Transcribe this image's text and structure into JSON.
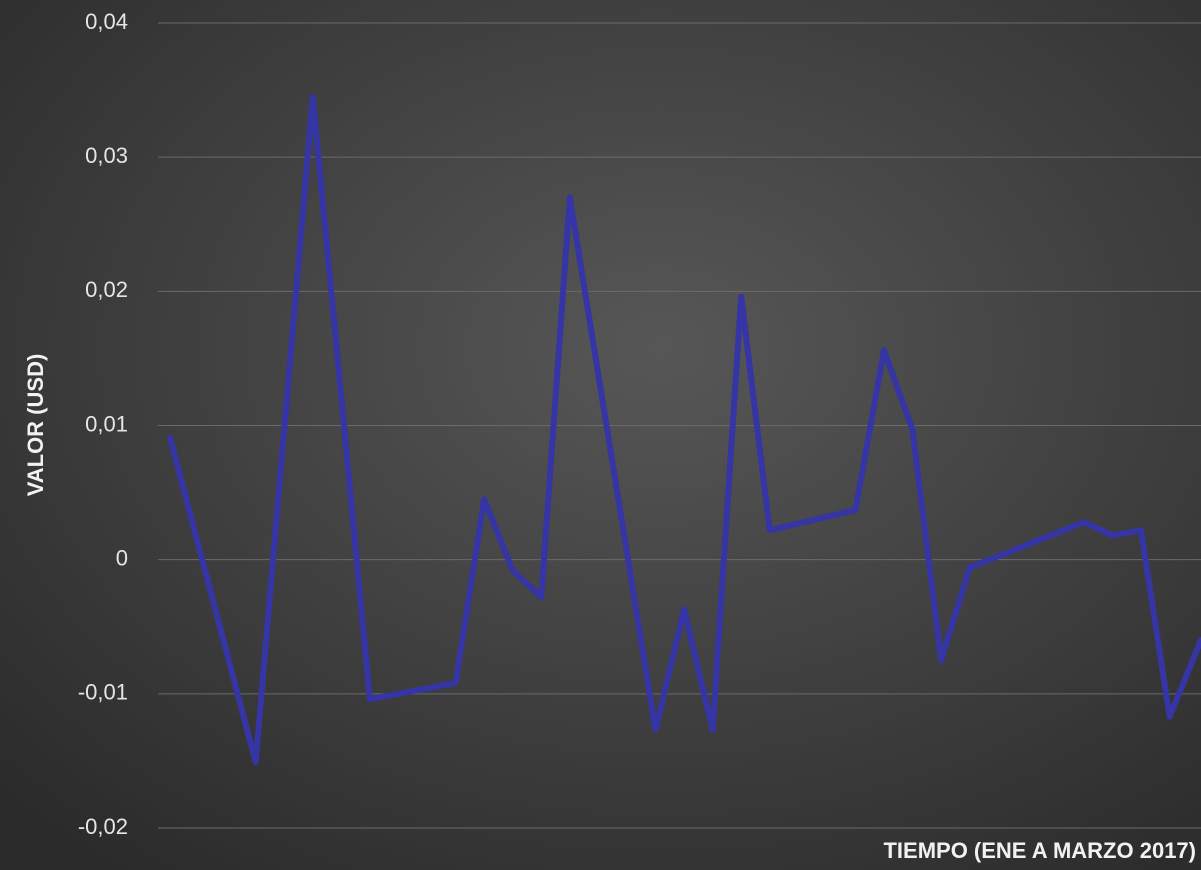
{
  "chart_data": {
    "type": "line",
    "y_label": "VALOR (USD)",
    "x_label": "TIEMPO (ENE A MARZO 2017)",
    "x": [
      0,
      3,
      5,
      7,
      10,
      11,
      12,
      13,
      14,
      17,
      18,
      19,
      20,
      21,
      24,
      25,
      26,
      27,
      28,
      32,
      33,
      34,
      35,
      36.1
    ],
    "series": [
      {
        "name": "Valor",
        "color": "#3535a6",
        "values": [
          0.0091,
          -0.0151,
          0.0345,
          -0.0104,
          -0.0092,
          0.0045,
          -0.0008,
          -0.0028,
          0.027,
          -0.0127,
          -0.0037,
          -0.0127,
          0.0196,
          0.0022,
          0.0037,
          0.0156,
          0.0097,
          -0.0075,
          -0.0006,
          0.0028,
          0.0018,
          0.0022,
          -0.0117,
          -0.006
        ]
      }
    ],
    "xlim": [
      -0.42,
      36.1
    ],
    "ylim": [
      -0.02,
      0.04
    ],
    "yticks": [
      {
        "value": -0.02,
        "label": "-0,02"
      },
      {
        "value": -0.01,
        "label": "-0,01"
      },
      {
        "value": 0,
        "label": "0"
      },
      {
        "value": 0.01,
        "label": "0,01"
      },
      {
        "value": 0.02,
        "label": "0,02"
      },
      {
        "value": 0.03,
        "label": "0,03"
      },
      {
        "value": 0.04,
        "label": "0,04"
      }
    ],
    "grid": true
  }
}
